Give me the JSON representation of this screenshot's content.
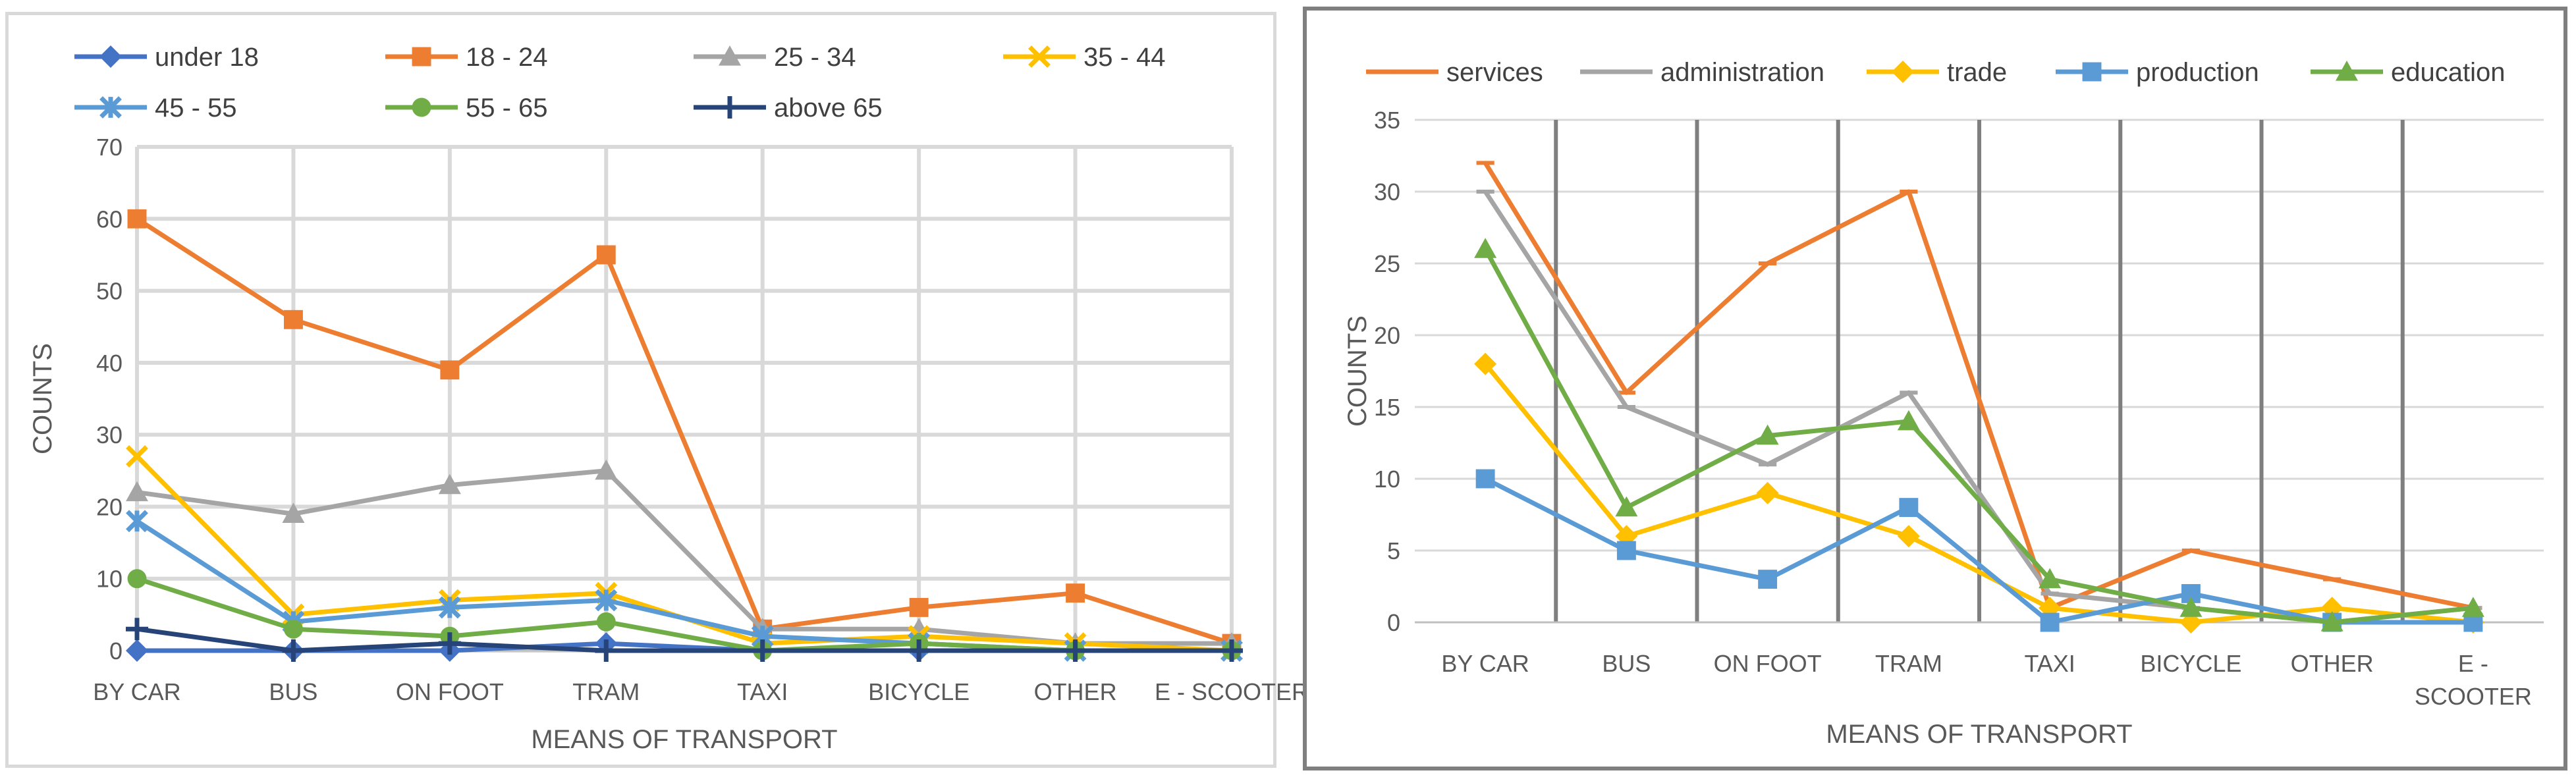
{
  "chart_data": [
    {
      "type": "line",
      "title": "",
      "xlabel": "MEANS OF TRANSPORT",
      "ylabel": "COUNTS",
      "ylim": [
        0,
        70
      ],
      "yticks": [
        "0",
        "10",
        "20",
        "30",
        "40",
        "50",
        "60",
        "70"
      ],
      "grid": "both",
      "legend_position": "top",
      "categories": [
        "BY CAR",
        "BUS",
        "ON FOOT",
        "TRAM",
        "TAXI",
        "BICYCLE",
        "OTHER",
        "E - SCOOTER"
      ],
      "series": [
        {
          "name": "under 18",
          "color": "#4472c4",
          "marker": "diamond",
          "values": [
            0,
            0,
            0,
            1,
            0,
            0,
            0,
            0
          ]
        },
        {
          "name": "18 - 24",
          "color": "#ed7d31",
          "marker": "square",
          "values": [
            60,
            46,
            39,
            55,
            3,
            6,
            8,
            1
          ]
        },
        {
          "name": "25 - 34",
          "color": "#a5a5a5",
          "marker": "triangle",
          "values": [
            22,
            19,
            23,
            25,
            3,
            3,
            1,
            1
          ]
        },
        {
          "name": "35 - 44",
          "color": "#ffc000",
          "marker": "x",
          "values": [
            27,
            5,
            7,
            8,
            1,
            2,
            1,
            0
          ]
        },
        {
          "name": "45 - 55",
          "color": "#5b9bd5",
          "marker": "star",
          "values": [
            18,
            4,
            6,
            7,
            2,
            1,
            0,
            0
          ]
        },
        {
          "name": "55 - 65",
          "color": "#70ad47",
          "marker": "circle",
          "values": [
            10,
            3,
            2,
            4,
            0,
            1,
            0,
            0
          ]
        },
        {
          "name": "above 65",
          "color": "#264478",
          "marker": "plus",
          "values": [
            3,
            0,
            1,
            0,
            0,
            0,
            0,
            0
          ]
        }
      ]
    },
    {
      "type": "line",
      "title": "",
      "xlabel": "MEANS OF TRANSPORT",
      "ylabel": "COUNTS",
      "ylim": [
        0,
        35
      ],
      "yticks": [
        "0",
        "5",
        "10",
        "15",
        "20",
        "25",
        "30",
        "35"
      ],
      "grid": "both",
      "legend_position": "top",
      "categories": [
        "BY CAR",
        "BUS",
        "ON FOOT",
        "TRAM",
        "TAXI",
        "BICYCLE",
        "OTHER",
        "E - SCOOTER"
      ],
      "series": [
        {
          "name": "services",
          "color": "#ed7d31",
          "marker": "dash",
          "values": [
            32,
            16,
            25,
            30,
            1,
            5,
            3,
            1
          ]
        },
        {
          "name": "administration",
          "color": "#a5a5a5",
          "marker": "dash",
          "values": [
            30,
            15,
            11,
            16,
            2,
            1,
            0,
            1
          ]
        },
        {
          "name": "trade",
          "color": "#ffc000",
          "marker": "diamond",
          "values": [
            18,
            6,
            9,
            6,
            1,
            0,
            1,
            0
          ]
        },
        {
          "name": "production",
          "color": "#5b9bd5",
          "marker": "square",
          "values": [
            10,
            5,
            3,
            8,
            0,
            2,
            0,
            0
          ]
        },
        {
          "name": "education",
          "color": "#70ad47",
          "marker": "triangle",
          "values": [
            26,
            8,
            13,
            14,
            3,
            1,
            0,
            1
          ]
        }
      ]
    }
  ]
}
